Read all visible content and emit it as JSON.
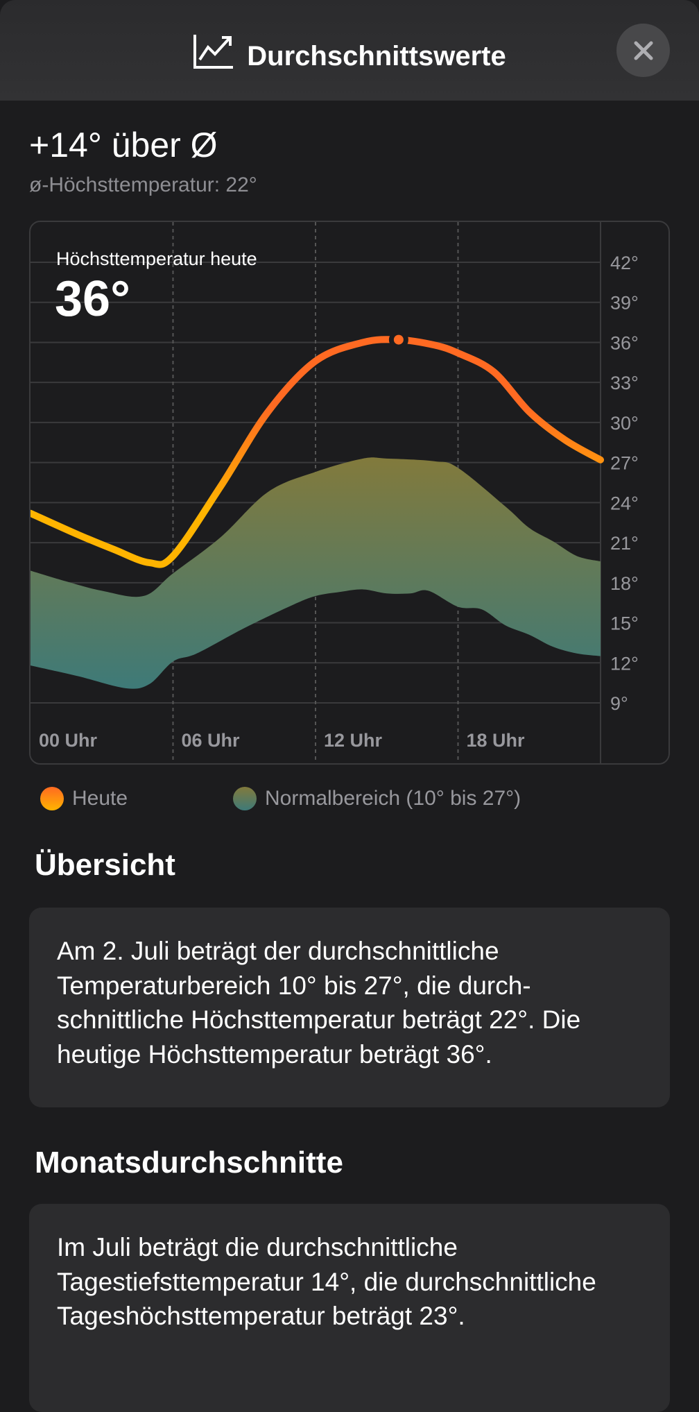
{
  "header": {
    "title": "Durchschnittswerte",
    "icon": "chart-line-uptrend-icon",
    "close_icon": "close-icon"
  },
  "summary": {
    "delta": "+14° über Ø",
    "avg_high": "ø-Höchsttemperatur: 22°"
  },
  "chart_data": {
    "type": "area",
    "title": "Höchsttemperatur heute",
    "value_label": "36°",
    "x_unit": "hour",
    "xlim": [
      0,
      24
    ],
    "ylim": [
      9,
      42
    ],
    "x_ticks": [
      0,
      6,
      12,
      18
    ],
    "x_tick_labels": [
      "00 Uhr",
      "06 Uhr",
      "12 Uhr",
      "18 Uhr"
    ],
    "y_ticks": [
      42,
      39,
      36,
      33,
      30,
      27,
      24,
      21,
      18,
      15,
      12,
      9
    ],
    "y_tick_labels": [
      "42°",
      "39°",
      "36°",
      "33°",
      "30°",
      "27°",
      "24°",
      "21°",
      "18°",
      "15°",
      "12°",
      "9°"
    ],
    "grid": true,
    "series": [
      {
        "name": "Heute",
        "type": "line",
        "color_top": "#ff6a22",
        "color_bottom": "#ffb400",
        "x": [
          0,
          2,
          3.5,
          5,
          6,
          8,
          10,
          12,
          14,
          15.5,
          17,
          18,
          19.5,
          21,
          22.5,
          24
        ],
        "y": [
          23.2,
          21.6,
          20.5,
          19.5,
          20.0,
          25.2,
          30.8,
          34.6,
          36.0,
          36.2,
          35.8,
          35.2,
          33.8,
          30.8,
          28.7,
          27.2
        ],
        "peak": {
          "x": 15.5,
          "y": 36.2
        }
      },
      {
        "name": "Normalbereich (10° bis 27°)",
        "type": "range",
        "color_top": "#827a3c",
        "color_bottom": "#3e7a78",
        "x": [
          0,
          1.5,
          3,
          4.75,
          6,
          8,
          10,
          12,
          14,
          15,
          17,
          18,
          20,
          21,
          22,
          23,
          24
        ],
        "upper": [
          18.9,
          18.1,
          17.4,
          17.0,
          18.7,
          21.4,
          24.8,
          26.3,
          27.3,
          27.3,
          27.1,
          26.6,
          23.7,
          22.1,
          21.1,
          20.0,
          19.6
        ],
        "x_lower": [
          0,
          2,
          4,
          5,
          6,
          7,
          9,
          11,
          12,
          13,
          14,
          15,
          16,
          16.75,
          18,
          19,
          20,
          21,
          22,
          23,
          24
        ],
        "lower": [
          11.8,
          11.0,
          10.1,
          10.4,
          12.1,
          12.7,
          14.6,
          16.3,
          17.0,
          17.3,
          17.5,
          17.2,
          17.2,
          17.4,
          16.2,
          16.0,
          14.8,
          14.1,
          13.2,
          12.7,
          12.5
        ]
      }
    ],
    "legend": [
      {
        "label": "Heute"
      },
      {
        "label": "Normalbereich (10° bis 27°)"
      }
    ],
    "legend_placement": "bottom"
  },
  "overview": {
    "heading": "Übersicht",
    "text": "Am 2. Juli beträgt der durchschnittliche Temperaturbereich 10° bis 27°, die durch­schnittliche Höchsttemperatur beträgt 22°. Die heutige Höchsttemperatur beträgt 36°."
  },
  "monthly": {
    "heading": "Monatsdurchschnitte",
    "text": "Im Juli beträgt die durchschnittliche Tagestiefsttemperatur 14°, die durch­schnittliche Tageshöchsttemperatur beträgt 23°."
  }
}
